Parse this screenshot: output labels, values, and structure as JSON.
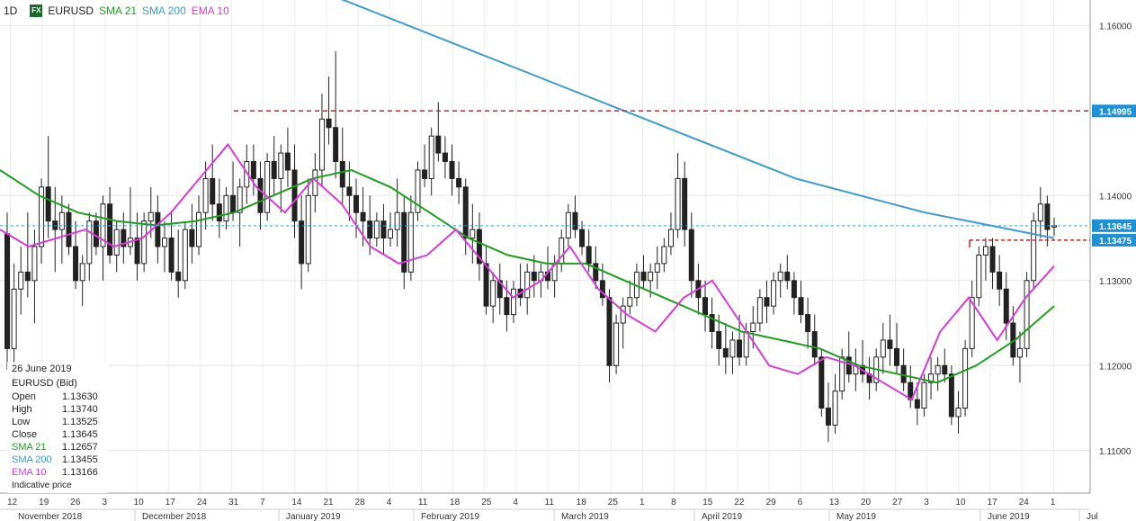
{
  "header": {
    "timeframe": "1D",
    "fx_badge": "FX",
    "symbol": "EURUSD",
    "indicators": [
      {
        "label": "SMA 21",
        "color": "#1e9e1e"
      },
      {
        "label": "SMA 200",
        "color": "#3b9bd0"
      },
      {
        "label": "EMA 10",
        "color": "#d63bd6"
      }
    ]
  },
  "info_panel": {
    "date": "26 June 2019",
    "instrument": "EURUSD (Bid)",
    "rows": [
      {
        "label": "Open",
        "value": "1.13630",
        "color": "#222222"
      },
      {
        "label": "High",
        "value": "1.13740",
        "color": "#222222"
      },
      {
        "label": "Low",
        "value": "1.13525",
        "color": "#222222"
      },
      {
        "label": "Close",
        "value": "1.13645",
        "color": "#222222"
      },
      {
        "label": "SMA 21",
        "value": "1.12657",
        "color": "#1e9e1e"
      },
      {
        "label": "SMA 200",
        "value": "1.13455",
        "color": "#3b9bd0"
      },
      {
        "label": "EMA 10",
        "value": "1.13166",
        "color": "#d63bd6"
      }
    ],
    "note": "Indicative price"
  },
  "chart_data": {
    "type": "candlestick",
    "ylim": [
      1.105,
      1.163
    ],
    "y_ticks": [
      "1.16000",
      "1.14000",
      "1.13000",
      "1.12000",
      "1.11000"
    ],
    "price_tags": [
      {
        "value": "1.14995",
        "color": "#1e90d6"
      },
      {
        "value": "1.13645",
        "color": "#1e90d6"
      },
      {
        "value": "1.13475",
        "color": "#1e90d6"
      }
    ],
    "levels": [
      {
        "price": 1.14995,
        "style": "dashed",
        "color": "#cc2222"
      },
      {
        "price": 1.13475,
        "style": "dashed",
        "color": "#cc2222"
      },
      {
        "price": 1.13645,
        "style": "dashed",
        "color": "#3b9bd0"
      }
    ],
    "x_day_labels": [
      "12",
      "19",
      "26",
      "3",
      "10",
      "17",
      "24",
      "31",
      "7",
      "14",
      "21",
      "28",
      "4",
      "11",
      "18",
      "25",
      "4",
      "11",
      "18",
      "25",
      "1",
      "8",
      "15",
      "22",
      "29",
      "6",
      "13",
      "20",
      "27",
      "3",
      "10",
      "17",
      "24",
      "1"
    ],
    "x_month_labels": [
      "November 2018",
      "December 2018",
      "January 2019",
      "February 2019",
      "March 2019",
      "April 2019",
      "May 2019",
      "June 2019",
      "Jul"
    ],
    "candles": [
      [
        1.1355,
        1.138,
        1.1195,
        1.122
      ],
      [
        1.122,
        1.132,
        1.118,
        1.129
      ],
      [
        1.129,
        1.134,
        1.126,
        1.131
      ],
      [
        1.131,
        1.138,
        1.128,
        1.13
      ],
      [
        1.13,
        1.136,
        1.125,
        1.134
      ],
      [
        1.134,
        1.142,
        1.132,
        1.141
      ],
      [
        1.141,
        1.147,
        1.135,
        1.137
      ],
      [
        1.137,
        1.141,
        1.131,
        1.136
      ],
      [
        1.136,
        1.14,
        1.132,
        1.138
      ],
      [
        1.138,
        1.139,
        1.133,
        1.134
      ],
      [
        1.134,
        1.137,
        1.129,
        1.13
      ],
      [
        1.13,
        1.133,
        1.127,
        1.132
      ],
      [
        1.132,
        1.138,
        1.13,
        1.137
      ],
      [
        1.137,
        1.138,
        1.133,
        1.134
      ],
      [
        1.134,
        1.14,
        1.13,
        1.139
      ],
      [
        1.139,
        1.141,
        1.132,
        1.133
      ],
      [
        1.133,
        1.137,
        1.131,
        1.136
      ],
      [
        1.136,
        1.138,
        1.132,
        1.134
      ],
      [
        1.134,
        1.141,
        1.133,
        1.135
      ],
      [
        1.135,
        1.138,
        1.13,
        1.132
      ],
      [
        1.132,
        1.138,
        1.131,
        1.137
      ],
      [
        1.137,
        1.141,
        1.135,
        1.138
      ],
      [
        1.138,
        1.14,
        1.132,
        1.134
      ],
      [
        1.134,
        1.137,
        1.131,
        1.135
      ],
      [
        1.135,
        1.138,
        1.13,
        1.131
      ],
      [
        1.131,
        1.136,
        1.128,
        1.13
      ],
      [
        1.13,
        1.137,
        1.129,
        1.136
      ],
      [
        1.136,
        1.139,
        1.132,
        1.134
      ],
      [
        1.134,
        1.14,
        1.133,
        1.138
      ],
      [
        1.138,
        1.144,
        1.136,
        1.142
      ],
      [
        1.142,
        1.146,
        1.137,
        1.139
      ],
      [
        1.139,
        1.142,
        1.135,
        1.137
      ],
      [
        1.137,
        1.141,
        1.136,
        1.14
      ],
      [
        1.14,
        1.144,
        1.137,
        1.138
      ],
      [
        1.138,
        1.142,
        1.134,
        1.141
      ],
      [
        1.141,
        1.146,
        1.139,
        1.144
      ],
      [
        1.144,
        1.146,
        1.14,
        1.142
      ],
      [
        1.142,
        1.144,
        1.136,
        1.138
      ],
      [
        1.138,
        1.145,
        1.137,
        1.144
      ],
      [
        1.144,
        1.147,
        1.14,
        1.142
      ],
      [
        1.142,
        1.146,
        1.138,
        1.145
      ],
      [
        1.145,
        1.148,
        1.141,
        1.143
      ],
      [
        1.143,
        1.146,
        1.135,
        1.137
      ],
      [
        1.137,
        1.14,
        1.129,
        1.132
      ],
      [
        1.132,
        1.142,
        1.131,
        1.14
      ],
      [
        1.14,
        1.145,
        1.138,
        1.143
      ],
      [
        1.143,
        1.152,
        1.141,
        1.149
      ],
      [
        1.149,
        1.154,
        1.146,
        1.148
      ],
      [
        1.148,
        1.157,
        1.142,
        1.144
      ],
      [
        1.144,
        1.148,
        1.139,
        1.141
      ],
      [
        1.141,
        1.144,
        1.137,
        1.14
      ],
      [
        1.14,
        1.142,
        1.135,
        1.138
      ],
      [
        1.138,
        1.141,
        1.134,
        1.137
      ],
      [
        1.137,
        1.14,
        1.133,
        1.135
      ],
      [
        1.135,
        1.138,
        1.134,
        1.137
      ],
      [
        1.137,
        1.139,
        1.133,
        1.135
      ],
      [
        1.135,
        1.138,
        1.134,
        1.136
      ],
      [
        1.136,
        1.142,
        1.134,
        1.138
      ],
      [
        1.138,
        1.14,
        1.129,
        1.131
      ],
      [
        1.131,
        1.14,
        1.13,
        1.138
      ],
      [
        1.138,
        1.144,
        1.137,
        1.143
      ],
      [
        1.143,
        1.146,
        1.141,
        1.142
      ],
      [
        1.142,
        1.148,
        1.14,
        1.147
      ],
      [
        1.147,
        1.151,
        1.144,
        1.145
      ],
      [
        1.145,
        1.147,
        1.142,
        1.144
      ],
      [
        1.144,
        1.146,
        1.14,
        1.142
      ],
      [
        1.142,
        1.144,
        1.139,
        1.141
      ],
      [
        1.141,
        1.142,
        1.133,
        1.135
      ],
      [
        1.135,
        1.139,
        1.132,
        1.136
      ],
      [
        1.136,
        1.138,
        1.13,
        1.132
      ],
      [
        1.132,
        1.134,
        1.126,
        1.127
      ],
      [
        1.127,
        1.131,
        1.125,
        1.13
      ],
      [
        1.13,
        1.132,
        1.126,
        1.128
      ],
      [
        1.128,
        1.13,
        1.124,
        1.126
      ],
      [
        1.126,
        1.13,
        1.125,
        1.129
      ],
      [
        1.129,
        1.132,
        1.127,
        1.128
      ],
      [
        1.128,
        1.132,
        1.126,
        1.131
      ],
      [
        1.131,
        1.133,
        1.128,
        1.13
      ],
      [
        1.13,
        1.132,
        1.128,
        1.131
      ],
      [
        1.131,
        1.134,
        1.129,
        1.13
      ],
      [
        1.13,
        1.133,
        1.128,
        1.132
      ],
      [
        1.132,
        1.136,
        1.131,
        1.135
      ],
      [
        1.135,
        1.139,
        1.134,
        1.138
      ],
      [
        1.138,
        1.14,
        1.135,
        1.136
      ],
      [
        1.136,
        1.137,
        1.133,
        1.134
      ],
      [
        1.134,
        1.136,
        1.131,
        1.132
      ],
      [
        1.132,
        1.134,
        1.129,
        1.13
      ],
      [
        1.13,
        1.132,
        1.127,
        1.128
      ],
      [
        1.128,
        1.129,
        1.118,
        1.12
      ],
      [
        1.12,
        1.126,
        1.119,
        1.125
      ],
      [
        1.125,
        1.128,
        1.122,
        1.127
      ],
      [
        1.127,
        1.13,
        1.126,
        1.128
      ],
      [
        1.128,
        1.132,
        1.127,
        1.131
      ],
      [
        1.131,
        1.133,
        1.129,
        1.13
      ],
      [
        1.13,
        1.132,
        1.128,
        1.131
      ],
      [
        1.131,
        1.134,
        1.129,
        1.132
      ],
      [
        1.132,
        1.135,
        1.131,
        1.134
      ],
      [
        1.134,
        1.138,
        1.133,
        1.136
      ],
      [
        1.136,
        1.145,
        1.135,
        1.142
      ],
      [
        1.142,
        1.144,
        1.134,
        1.136
      ],
      [
        1.136,
        1.138,
        1.128,
        1.13
      ],
      [
        1.13,
        1.132,
        1.126,
        1.128
      ],
      [
        1.128,
        1.13,
        1.124,
        1.126
      ],
      [
        1.126,
        1.128,
        1.122,
        1.124
      ],
      [
        1.124,
        1.126,
        1.12,
        1.122
      ],
      [
        1.122,
        1.125,
        1.119,
        1.121
      ],
      [
        1.121,
        1.124,
        1.119,
        1.123
      ],
      [
        1.123,
        1.126,
        1.12,
        1.121
      ],
      [
        1.121,
        1.125,
        1.12,
        1.124
      ],
      [
        1.124,
        1.127,
        1.122,
        1.125
      ],
      [
        1.125,
        1.129,
        1.124,
        1.128
      ],
      [
        1.128,
        1.13,
        1.125,
        1.127
      ],
      [
        1.127,
        1.131,
        1.126,
        1.13
      ],
      [
        1.13,
        1.132,
        1.128,
        1.131
      ],
      [
        1.131,
        1.133,
        1.129,
        1.13
      ],
      [
        1.13,
        1.131,
        1.126,
        1.128
      ],
      [
        1.128,
        1.13,
        1.125,
        1.126
      ],
      [
        1.126,
        1.128,
        1.122,
        1.124
      ],
      [
        1.124,
        1.126,
        1.12,
        1.121
      ],
      [
        1.121,
        1.122,
        1.114,
        1.115
      ],
      [
        1.115,
        1.118,
        1.111,
        1.113
      ],
      [
        1.113,
        1.119,
        1.112,
        1.117
      ],
      [
        1.117,
        1.122,
        1.116,
        1.121
      ],
      [
        1.121,
        1.124,
        1.118,
        1.119
      ],
      [
        1.119,
        1.122,
        1.117,
        1.12
      ],
      [
        1.12,
        1.123,
        1.118,
        1.119
      ],
      [
        1.119,
        1.121,
        1.116,
        1.118
      ],
      [
        1.118,
        1.122,
        1.117,
        1.121
      ],
      [
        1.121,
        1.125,
        1.119,
        1.123
      ],
      [
        1.123,
        1.126,
        1.12,
        1.122
      ],
      [
        1.122,
        1.125,
        1.119,
        1.12
      ],
      [
        1.12,
        1.122,
        1.117,
        1.118
      ],
      [
        1.118,
        1.12,
        1.115,
        1.116
      ],
      [
        1.116,
        1.118,
        1.113,
        1.115
      ],
      [
        1.115,
        1.119,
        1.114,
        1.118
      ],
      [
        1.118,
        1.121,
        1.116,
        1.119
      ],
      [
        1.119,
        1.121,
        1.117,
        1.12
      ],
      [
        1.12,
        1.122,
        1.118,
        1.119
      ],
      [
        1.119,
        1.12,
        1.113,
        1.114
      ],
      [
        1.114,
        1.117,
        1.112,
        1.115
      ],
      [
        1.115,
        1.123,
        1.114,
        1.122
      ],
      [
        1.122,
        1.13,
        1.121,
        1.128
      ],
      [
        1.128,
        1.134,
        1.127,
        1.133
      ],
      [
        1.133,
        1.135,
        1.13,
        1.134
      ],
      [
        1.134,
        1.135,
        1.129,
        1.131
      ],
      [
        1.131,
        1.133,
        1.127,
        1.129
      ],
      [
        1.129,
        1.131,
        1.123,
        1.125
      ],
      [
        1.125,
        1.127,
        1.12,
        1.121
      ],
      [
        1.121,
        1.124,
        1.118,
        1.122
      ],
      [
        1.122,
        1.131,
        1.121,
        1.13
      ],
      [
        1.13,
        1.138,
        1.129,
        1.137
      ],
      [
        1.137,
        1.141,
        1.135,
        1.139
      ],
      [
        1.139,
        1.14,
        1.134,
        1.136
      ],
      [
        1.1363,
        1.1374,
        1.13525,
        1.13645
      ]
    ],
    "sma200": [
      1.166,
      1.163,
      1.16,
      1.157,
      1.154,
      1.151,
      1.148,
      1.145,
      1.142,
      1.14,
      1.138,
      1.1365,
      1.135
    ],
    "sma21": [
      1.143,
      1.14,
      1.138,
      1.137,
      1.1365,
      1.137,
      1.138,
      1.14,
      1.142,
      1.143,
      1.141,
      1.138,
      1.135,
      1.133,
      1.132,
      1.132,
      1.13,
      1.128,
      1.126,
      1.124,
      1.123,
      1.122,
      1.12,
      1.119,
      1.118,
      1.12,
      1.123,
      1.127
    ],
    "ema10": [
      1.136,
      1.134,
      1.135,
      1.136,
      1.134,
      1.135,
      1.138,
      1.142,
      1.146,
      1.141,
      1.138,
      1.142,
      1.139,
      1.134,
      1.132,
      1.133,
      1.136,
      1.132,
      1.128,
      1.13,
      1.134,
      1.129,
      1.126,
      1.124,
      1.128,
      1.13,
      1.125,
      1.12,
      1.119,
      1.121,
      1.12,
      1.118,
      1.116,
      1.124,
      1.128,
      1.123,
      1.128,
      1.1317
    ]
  }
}
